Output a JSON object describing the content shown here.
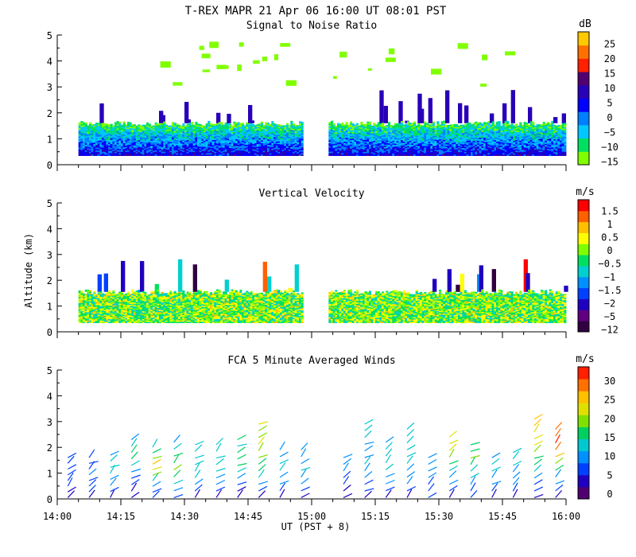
{
  "title": "T-REX  MAPR 21 Apr 06  16:00 UT  08:01  PST",
  "y_axis_label": "Altitude (km)",
  "x_axis_label": "UT  (PST + 8)",
  "x_ticks": [
    "14:00",
    "14:15",
    "14:30",
    "14:45",
    "15:00",
    "15:15",
    "15:30",
    "15:45",
    "16:00"
  ],
  "y_ticks": [
    "0",
    "1",
    "2",
    "3",
    "4",
    "5"
  ],
  "chart_data": [
    {
      "id": "snr",
      "type": "heatmap",
      "title": "Signal to Noise Ratio",
      "ylabel": "Altitude (km)",
      "xlabel": "UT  (PST + 8)",
      "xlim": [
        0,
        120
      ],
      "ylim": [
        0,
        5
      ],
      "colorbar_unit": "dB",
      "colorbar_ticks": [
        "25",
        "20",
        "15",
        "10",
        "5",
        "0",
        "−5",
        "−10",
        "−15"
      ],
      "colors": [
        "#80ff00",
        "#00e060",
        "#00c8ff",
        "#0080ff",
        "#0000ff",
        "#2800b8",
        "#500070",
        "#ff2000",
        "#ff7000",
        "#ffc800"
      ],
      "data_gaps_minutes": [
        [
          58,
          64
        ]
      ],
      "coverage_top_km": 1.6,
      "high_level_echo_km": [
        3.0,
        4.8
      ]
    },
    {
      "id": "vv",
      "type": "heatmap",
      "title": "Vertical Velocity",
      "ylabel": "Altitude (km)",
      "xlabel": "UT  (PST + 8)",
      "xlim": [
        0,
        120
      ],
      "ylim": [
        0,
        5
      ],
      "colorbar_unit": "m/s",
      "colorbar_ticks": [
        "1.5",
        "1",
        "0.5",
        "0",
        "−0.5",
        "−1",
        "−1.5",
        "−2",
        "−5",
        "−12"
      ],
      "colors": [
        "#300040",
        "#600080",
        "#2000c0",
        "#0040ff",
        "#0090ff",
        "#00d0d0",
        "#00e060",
        "#80ff00",
        "#ffff00",
        "#ffc000",
        "#ff6000",
        "#ff0000"
      ],
      "data_gaps_minutes": [
        [
          58,
          64
        ]
      ],
      "coverage_top_km": 1.55
    },
    {
      "id": "winds",
      "type": "scatter",
      "title": "FCA 5 Minute Averaged Winds",
      "ylabel": "Altitude (km)",
      "xlabel": "UT  (PST + 8)",
      "xlim": [
        0,
        120
      ],
      "ylim": [
        0,
        5
      ],
      "colorbar_unit": "m/s",
      "colorbar_ticks": [
        "30",
        "25",
        "20",
        "15",
        "10",
        "5",
        "0"
      ],
      "colors": [
        "#500070",
        "#2000c0",
        "#0040ff",
        "#0090ff",
        "#00c8d0",
        "#00d060",
        "#80e000",
        "#e0e000",
        "#ffc000",
        "#ff7000",
        "#ff2000"
      ],
      "profiles": [
        {
          "t": 2.5,
          "top_km": 1.6,
          "speeds": [
            3,
            4,
            5,
            6,
            6,
            6,
            7,
            5
          ]
        },
        {
          "t": 7.5,
          "top_km": 1.6,
          "speeds": [
            4,
            5,
            6,
            7,
            8,
            7,
            6,
            5
          ]
        },
        {
          "t": 12.5,
          "top_km": 1.7,
          "speeds": [
            3,
            5,
            8,
            10,
            12,
            11,
            12,
            10
          ]
        },
        {
          "t": 17.5,
          "top_km": 2.3,
          "speeds": [
            3,
            4,
            6,
            7,
            9,
            12,
            15,
            14,
            12,
            10
          ]
        },
        {
          "t": 22.5,
          "top_km": 2.0,
          "speeds": [
            5,
            7,
            9,
            12,
            18,
            22,
            25,
            18,
            14,
            12
          ]
        },
        {
          "t": 27.5,
          "top_km": 2.2,
          "speeds": [
            6,
            9,
            12,
            15,
            18,
            16,
            14,
            12,
            10
          ]
        },
        {
          "t": 32.5,
          "top_km": 2.1,
          "speeds": [
            3,
            6,
            9,
            11,
            13,
            12,
            11,
            12,
            12
          ]
        },
        {
          "t": 37.5,
          "top_km": 2.1,
          "speeds": [
            2,
            5,
            8,
            10,
            12,
            13,
            12,
            11,
            13
          ]
        },
        {
          "t": 42.5,
          "top_km": 2.3,
          "speeds": [
            3,
            4,
            6,
            9,
            12,
            14,
            15,
            14,
            13,
            15
          ]
        },
        {
          "t": 47.5,
          "top_km": 2.9,
          "speeds": [
            3,
            5,
            8,
            11,
            14,
            16,
            18,
            19,
            20,
            18,
            17,
            21
          ]
        },
        {
          "t": 52.5,
          "top_km": 1.9,
          "speeds": [
            4,
            6,
            8,
            10,
            12,
            11,
            10,
            9
          ]
        },
        {
          "t": 57.5,
          "top_km": 1.9,
          "speeds": [
            3,
            6,
            9,
            10,
            11,
            10,
            9,
            10
          ]
        },
        {
          "t": 67.5,
          "top_km": 1.6,
          "speeds": [
            3,
            4,
            6,
            7,
            8,
            9,
            8
          ]
        },
        {
          "t": 72.5,
          "top_km": 2.9,
          "speeds": [
            3,
            5,
            7,
            9,
            10,
            11,
            9,
            8,
            10,
            12,
            13,
            12
          ]
        },
        {
          "t": 77.5,
          "top_km": 2.2,
          "speeds": [
            3,
            5,
            8,
            10,
            12,
            13,
            12,
            11,
            10
          ]
        },
        {
          "t": 82.5,
          "top_km": 2.7,
          "speeds": [
            4,
            6,
            8,
            9,
            10,
            12,
            11,
            12,
            13,
            12,
            12
          ]
        },
        {
          "t": 87.5,
          "top_km": 1.6,
          "speeds": [
            5,
            6,
            7,
            8,
            9,
            8,
            8
          ]
        },
        {
          "t": 92.5,
          "top_km": 2.4,
          "speeds": [
            4,
            6,
            8,
            10,
            12,
            14,
            18,
            20,
            21,
            22
          ]
        },
        {
          "t": 97.5,
          "top_km": 2.1,
          "speeds": [
            5,
            7,
            9,
            11,
            13,
            15,
            17,
            16,
            15
          ]
        },
        {
          "t": 102.5,
          "top_km": 1.6,
          "speeds": [
            4,
            6,
            8,
            10,
            12,
            11,
            10
          ]
        },
        {
          "t": 107.5,
          "top_km": 1.8,
          "speeds": [
            4,
            6,
            8,
            9,
            10,
            11,
            12,
            11
          ]
        },
        {
          "t": 112.5,
          "top_km": 3.1,
          "speeds": [
            3,
            5,
            7,
            9,
            11,
            14,
            16,
            18,
            20,
            21,
            22,
            24,
            23
          ]
        },
        {
          "t": 117.5,
          "top_km": 2.7,
          "speeds": [
            3,
            5,
            8,
            10,
            14,
            18,
            24,
            27,
            29,
            28,
            26
          ]
        }
      ]
    }
  ]
}
